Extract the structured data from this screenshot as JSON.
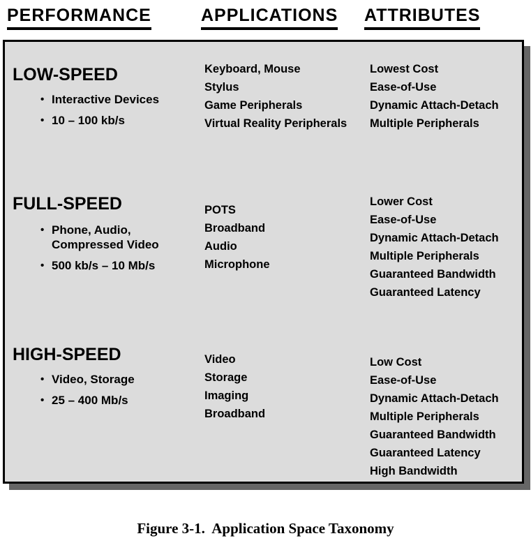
{
  "headers": {
    "performance": "PERFORMANCE",
    "applications": "APPLICATIONS",
    "attributes": "ATTRIBUTES"
  },
  "bullet_char": "•",
  "rows": [
    {
      "performance": {
        "title": "LOW-SPEED",
        "bullets": [
          "Interactive Devices",
          "10 – 100 kb/s"
        ]
      },
      "applications": [
        "Keyboard, Mouse",
        "Stylus",
        "Game Peripherals",
        "Virtual Reality Peripherals"
      ],
      "attributes": [
        "Lowest Cost",
        "Ease-of-Use",
        "Dynamic Attach-Detach",
        "Multiple Peripherals"
      ]
    },
    {
      "performance": {
        "title": "FULL-SPEED",
        "bullets": [
          "Phone, Audio, Compressed Video",
          "500 kb/s – 10 Mb/s"
        ]
      },
      "applications": [
        "POTS",
        "Broadband",
        "Audio",
        "Microphone"
      ],
      "attributes": [
        "Lower Cost",
        "Ease-of-Use",
        "Dynamic Attach-Detach",
        "Multiple Peripherals",
        "Guaranteed Bandwidth",
        "Guaranteed Latency"
      ]
    },
    {
      "performance": {
        "title": "HIGH-SPEED",
        "bullets": [
          "Video, Storage",
          "25 – 400 Mb/s"
        ]
      },
      "applications": [
        "Video",
        "Storage",
        "Imaging",
        "Broadband"
      ],
      "attributes": [
        "Low Cost",
        "Ease-of-Use",
        "Dynamic Attach-Detach",
        "Multiple Peripherals",
        "Guaranteed Bandwidth",
        "Guaranteed Latency",
        "High Bandwidth"
      ]
    }
  ],
  "caption": "Figure 3-1.  Application Space Taxonomy",
  "colors": {
    "background": "#ffffff",
    "box_fill": "#dcdcdc",
    "box_border": "#000000",
    "shadow": "#666666",
    "text": "#000000"
  }
}
